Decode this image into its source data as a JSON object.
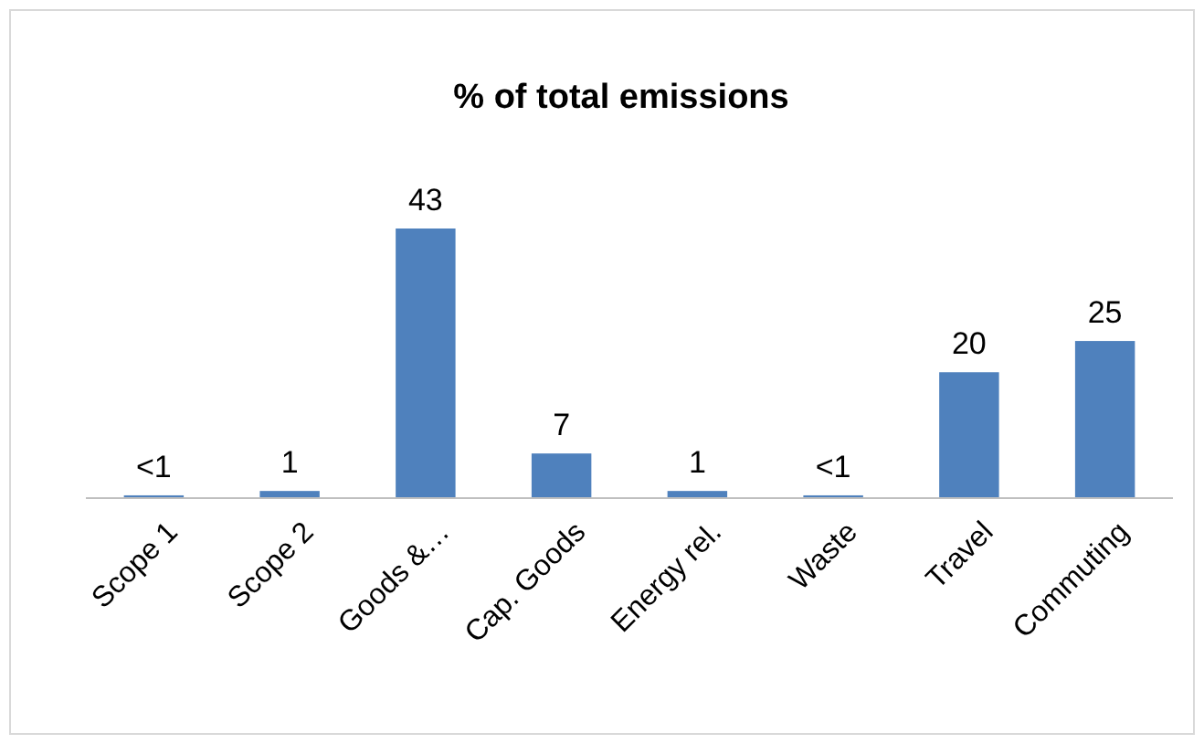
{
  "chart_data": {
    "type": "bar",
    "title": "% of total emissions",
    "categories": [
      "Scope 1",
      "Scope 2",
      "Goods &…",
      "Cap. Goods",
      "Energy rel.",
      "Waste",
      "Travel",
      "Commuting"
    ],
    "values": [
      0.3,
      1,
      43,
      7,
      1,
      0.3,
      20,
      25
    ],
    "value_labels": [
      "<1",
      "1",
      "43",
      "7",
      "1",
      "<1",
      "20",
      "25"
    ],
    "color": "#4f81bd"
  }
}
